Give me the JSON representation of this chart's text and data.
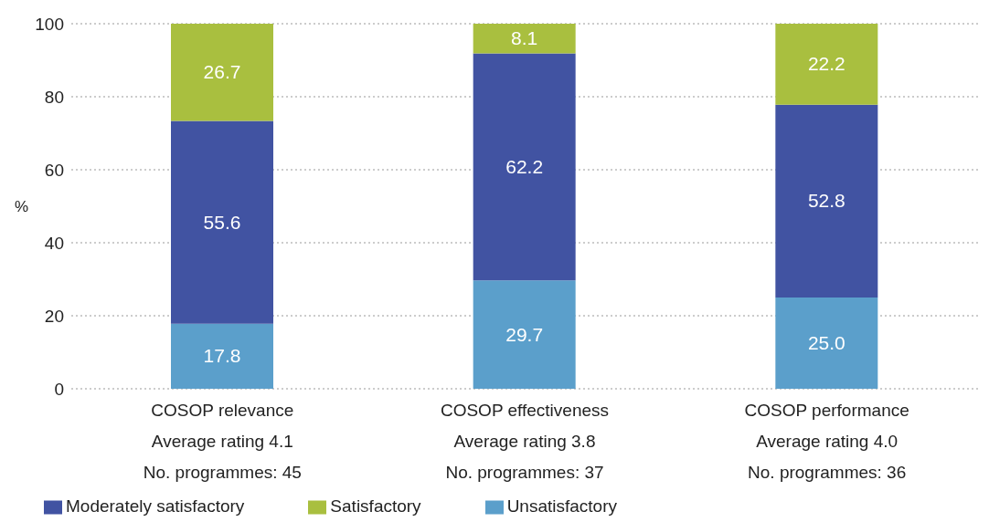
{
  "chart_data": {
    "type": "bar",
    "stacked": true,
    "ylabel": "%",
    "categories": [
      "COSOP relevance\nAverage rating 4.1\nNo. programmes: 45",
      "COSOP effectiveness\nAverage rating 3.8\nNo. programmes: 37",
      "COSOP performance\nAverage rating 4.0\nNo. programmes: 36"
    ],
    "series": [
      {
        "name": "Unsatisfactory",
        "color": "#5b9fcb",
        "values": [
          17.8,
          29.7,
          25.0
        ],
        "value_labels": [
          "17.8",
          "29.7",
          "25.0"
        ]
      },
      {
        "name": "Moderately satisfactory",
        "color": "#4153a2",
        "values": [
          55.6,
          62.2,
          52.8
        ],
        "value_labels": [
          "55.6",
          "62.2",
          "52.8"
        ]
      },
      {
        "name": "Satisfactory",
        "color": "#a9bf3f",
        "values": [
          26.7,
          8.1,
          22.2
        ],
        "value_labels": [
          "26.7",
          "8.1",
          "22.2"
        ]
      }
    ],
    "ylim": [
      0,
      100
    ],
    "yticks": [
      0,
      20,
      40,
      60,
      80,
      100
    ],
    "grid": "y",
    "legend": "bottom left"
  }
}
